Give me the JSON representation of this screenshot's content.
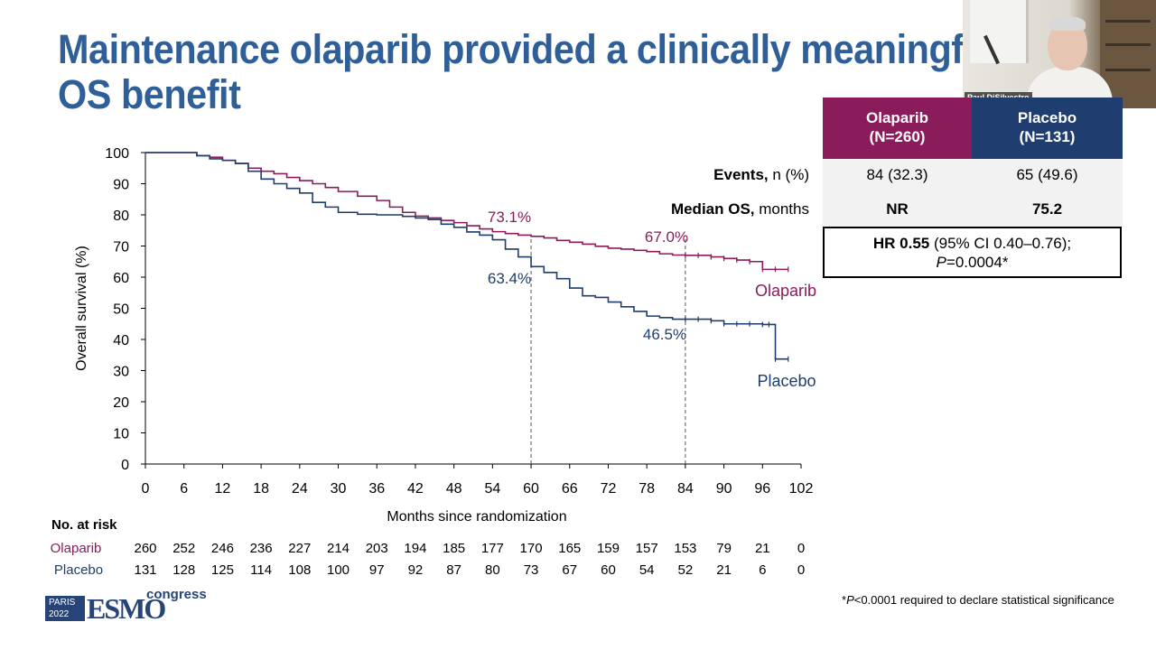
{
  "slide": {
    "title_line1": "Maintenance olaparib provided a clinically meaningful",
    "title_line2": "OS benefit",
    "webcam_name": "Paul DiSilvestro",
    "at_risk_title": "No. at risk",
    "footnote_prefix": "*",
    "footnote_p": "P",
    "footnote_rest": "<0.0001 required to declare statistical significance",
    "logo_city_line1": "PARIS",
    "logo_city_line2": "2022",
    "logo_text": "ESMO",
    "logo_congress": "congress"
  },
  "table": {
    "olaparib_header_line1": "Olaparib",
    "olaparib_header_line2": "(N=260)",
    "placebo_header_line1": "Placebo",
    "placebo_header_line2": "(N=131)",
    "events_label_bold": "Events,",
    "events_label_rest": " n (%)",
    "events_olaparib": "84 (32.3)",
    "events_placebo": "65 (49.6)",
    "median_label_bold": "Median OS,",
    "median_label_rest": " months",
    "median_olaparib": "NR",
    "median_placebo": "75.2",
    "hr_bold": "HR 0.55",
    "hr_rest": " (95% CI 0.40–0.76);",
    "hr_p_italic": "P",
    "hr_p_rest": "=0.0004*"
  },
  "colors": {
    "olaparib": "#8a1c5c",
    "placebo": "#1f3d6e",
    "title": "#2f5f98"
  },
  "chart_data": {
    "type": "line",
    "title": "",
    "xlabel": "Months since randomization",
    "ylabel": "Overall survival (%)",
    "xlim": [
      0,
      102
    ],
    "ylim": [
      0,
      100
    ],
    "x_ticks": [
      0,
      6,
      12,
      18,
      24,
      30,
      36,
      42,
      48,
      54,
      60,
      66,
      72,
      78,
      84,
      90,
      96,
      102
    ],
    "y_ticks": [
      0,
      10,
      20,
      30,
      40,
      50,
      60,
      70,
      80,
      90,
      100
    ],
    "vertical_markers": [
      60,
      84
    ],
    "series": [
      {
        "name": "Olaparib",
        "color": "#8a1c5c",
        "x": [
          0,
          3,
          6,
          8,
          10,
          12,
          14,
          16,
          18,
          20,
          22,
          24,
          26,
          28,
          30,
          33,
          36,
          38,
          40,
          42,
          44,
          46,
          48,
          50,
          52,
          54,
          56,
          58,
          60,
          62,
          64,
          66,
          68,
          70,
          72,
          74,
          76,
          78,
          80,
          82,
          84,
          86,
          88,
          90,
          92,
          94,
          96,
          98,
          100
        ],
        "y": [
          100,
          100,
          100,
          99,
          98.5,
          97.5,
          96.5,
          95,
          94,
          93.2,
          92,
          91,
          90,
          88.8,
          87.5,
          86,
          84.6,
          82.5,
          80.8,
          79.6,
          79,
          78.2,
          77.5,
          76.5,
          75.5,
          74.6,
          74,
          73.5,
          73.1,
          72.6,
          71.8,
          71.2,
          70.6,
          69.9,
          69.3,
          69,
          68.6,
          68.2,
          67.5,
          67.1,
          67,
          67,
          66.5,
          66,
          65.5,
          65,
          62.5,
          62.5,
          62.5
        ]
      },
      {
        "name": "Placebo",
        "color": "#1f3d6e",
        "x": [
          0,
          3,
          6,
          8,
          10,
          12,
          14,
          16,
          18,
          20,
          22,
          24,
          26,
          28,
          30,
          33,
          36,
          38,
          40,
          42,
          44,
          46,
          48,
          50,
          52,
          54,
          56,
          58,
          60,
          62,
          64,
          66,
          68,
          70,
          72,
          74,
          76,
          78,
          80,
          82,
          84,
          86,
          88,
          90,
          92,
          94,
          96,
          97,
          98,
          100
        ],
        "y": [
          100,
          100,
          100,
          99,
          98,
          97.5,
          96.5,
          94,
          91.5,
          90,
          88.5,
          87,
          84,
          82.5,
          80.8,
          80.2,
          80,
          80,
          79.5,
          79,
          78.5,
          77,
          76,
          74.5,
          73.5,
          72,
          69,
          66.5,
          63.4,
          61.5,
          59.5,
          56.5,
          54,
          53.5,
          52,
          50.5,
          49,
          47.5,
          47,
          46.5,
          46.5,
          46.5,
          46,
          45,
          45,
          45,
          44.8,
          44.8,
          33.7,
          33.7
        ]
      }
    ],
    "annotations": [
      {
        "text": "73.1%",
        "x": 60,
        "y": 73.1,
        "series": "Olaparib"
      },
      {
        "text": "67.0%",
        "x": 84,
        "y": 67.0,
        "series": "Olaparib"
      },
      {
        "text": "63.4%",
        "x": 60,
        "y": 63.4,
        "series": "Placebo"
      },
      {
        "text": "46.5%",
        "x": 84,
        "y": 46.5,
        "series": "Placebo"
      }
    ],
    "series_labels": [
      "Olaparib",
      "Placebo"
    ],
    "at_risk": {
      "times": [
        0,
        6,
        12,
        18,
        24,
        30,
        36,
        42,
        48,
        54,
        60,
        66,
        72,
        78,
        84,
        90,
        96,
        102
      ],
      "rows": [
        {
          "name": "Olaparib",
          "values": [
            260,
            252,
            246,
            236,
            227,
            214,
            203,
            194,
            185,
            177,
            170,
            165,
            159,
            157,
            153,
            79,
            21,
            0
          ]
        },
        {
          "name": "Placebo",
          "values": [
            131,
            128,
            125,
            114,
            108,
            100,
            97,
            92,
            87,
            80,
            73,
            67,
            60,
            54,
            52,
            21,
            6,
            0
          ]
        }
      ]
    }
  }
}
